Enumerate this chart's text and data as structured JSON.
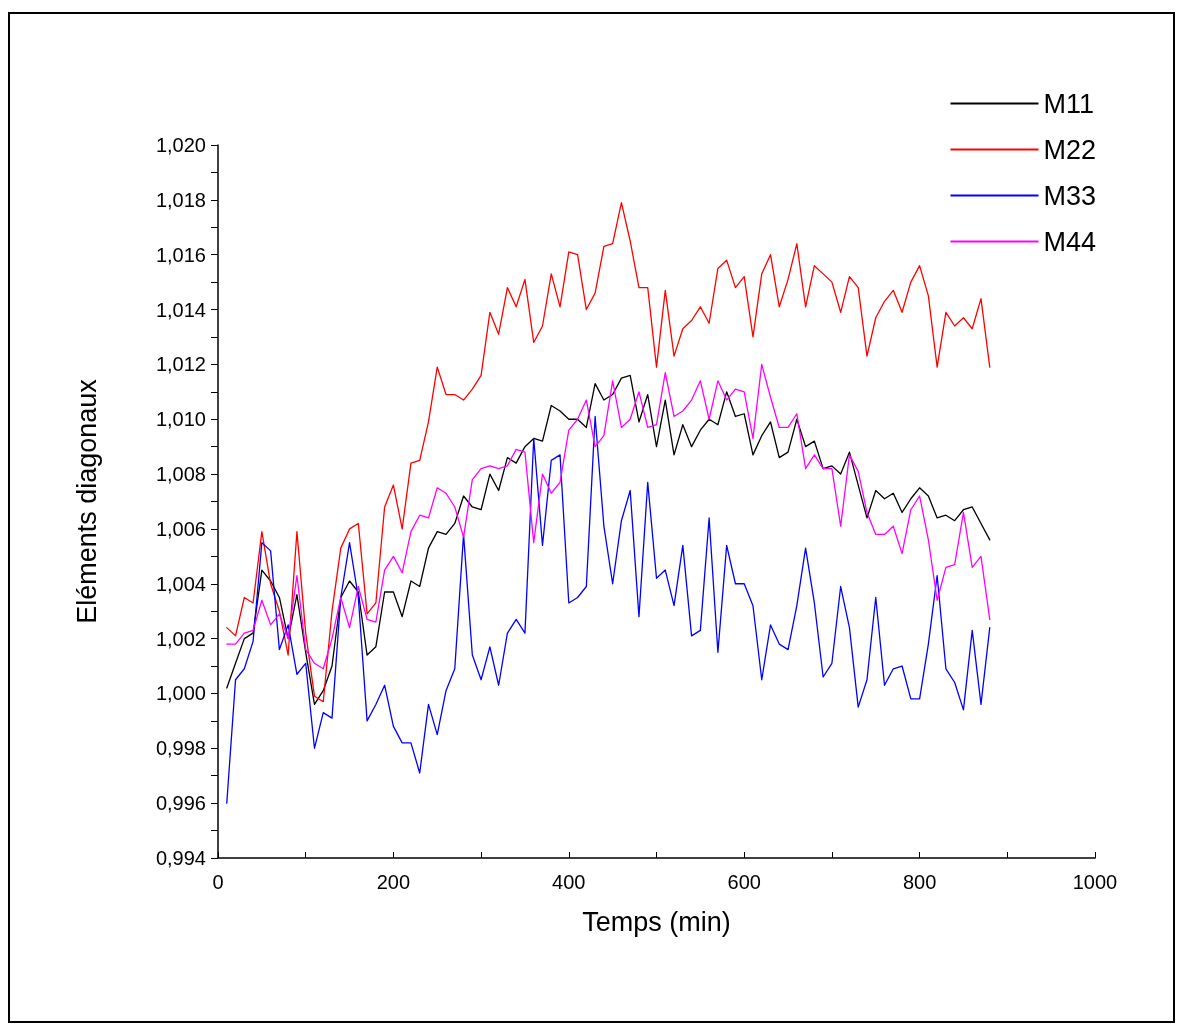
{
  "chart_data": {
    "type": "line",
    "xlabel": "Temps (min)",
    "ylabel": "Eléments diagonaux",
    "x": [
      10,
      20,
      30,
      40,
      50,
      60,
      70,
      80,
      90,
      100,
      110,
      120,
      130,
      140,
      150,
      160,
      170,
      180,
      190,
      200,
      210,
      220,
      230,
      240,
      250,
      260,
      270,
      280,
      290,
      300,
      310,
      320,
      330,
      340,
      350,
      360,
      370,
      380,
      390,
      400,
      410,
      420,
      430,
      440,
      450,
      460,
      470,
      480,
      490,
      500,
      510,
      520,
      530,
      540,
      550,
      560,
      570,
      580,
      590,
      600,
      610,
      620,
      630,
      640,
      650,
      660,
      670,
      680,
      690,
      700,
      710,
      720,
      730,
      740,
      750,
      760,
      770,
      780,
      790,
      800,
      810,
      820,
      830,
      840,
      850,
      860,
      870,
      880
    ],
    "series": [
      {
        "name": "M11",
        "color": "#000000",
        "values": [
          1.0002,
          1.0011,
          1.002,
          1.0022,
          1.0045,
          1.0041,
          1.0035,
          1.002,
          1.0036,
          1.0015,
          0.9996,
          1.0001,
          1.001,
          1.0035,
          1.0041,
          1.0037,
          1.0014,
          1.0017,
          1.0037,
          1.0037,
          1.0028,
          1.0041,
          1.0039,
          1.0053,
          1.0059,
          1.0058,
          1.0062,
          1.0072,
          1.0068,
          1.0067,
          1.008,
          1.0074,
          1.0086,
          1.0084,
          1.009,
          1.0093,
          1.0092,
          1.0105,
          1.0103,
          1.01,
          1.01,
          1.0097,
          1.0113,
          1.0107,
          1.0109,
          1.0115,
          1.0116,
          1.0099,
          1.0109,
          1.009,
          1.0107,
          1.0087,
          1.0098,
          1.009,
          1.0096,
          1.01,
          1.0098,
          1.011,
          1.0101,
          1.0102,
          1.0087,
          1.0094,
          1.0099,
          1.0086,
          1.0088,
          1.01,
          1.009,
          1.0092,
          1.0082,
          1.0083,
          1.008,
          1.0088,
          1.0076,
          1.0064,
          1.0074,
          1.0071,
          1.0073,
          1.0066,
          1.0071,
          1.0075,
          1.0072,
          1.0064,
          1.0065,
          1.0063,
          1.0067,
          1.0068,
          1.0062,
          1.0056
        ]
      },
      {
        "name": "M22",
        "color": "#ff0000",
        "values": [
          1.0024,
          1.0021,
          1.0035,
          1.0033,
          1.0059,
          1.004,
          1.003,
          1.0014,
          1.0059,
          1.0022,
          0.9999,
          0.9997,
          1.003,
          1.0053,
          1.006,
          1.0062,
          1.0029,
          1.0033,
          1.0068,
          1.0076,
          1.006,
          1.0084,
          1.0085,
          1.0099,
          1.0119,
          1.0109,
          1.0109,
          1.0107,
          1.0111,
          1.0116,
          1.0139,
          1.0131,
          1.0148,
          1.0141,
          1.0151,
          1.0128,
          1.0134,
          1.0153,
          1.0141,
          1.0161,
          1.016,
          1.014,
          1.0146,
          1.0163,
          1.0164,
          1.0179,
          1.0165,
          1.0148,
          1.0148,
          1.0119,
          1.0147,
          1.0123,
          1.0133,
          1.0136,
          1.0141,
          1.0135,
          1.0155,
          1.0158,
          1.0148,
          1.0152,
          1.013,
          1.0153,
          1.016,
          1.0141,
          1.0151,
          1.0164,
          1.0141,
          1.0156,
          1.0153,
          1.015,
          1.0139,
          1.0152,
          1.0148,
          1.0123,
          1.0137,
          1.0143,
          1.0147,
          1.0139,
          1.015,
          1.0156,
          1.0145,
          1.0119,
          1.0139,
          1.0134,
          1.0137,
          1.0133,
          1.0144,
          1.0119
        ]
      },
      {
        "name": "M33",
        "color": "#0000ff",
        "values": [
          0.996,
          1.0005,
          1.0009,
          1.0019,
          1.0055,
          1.0052,
          1.0016,
          1.0025,
          1.0007,
          1.0011,
          0.998,
          0.9993,
          0.9991,
          1.0035,
          1.0055,
          1.0035,
          0.999,
          0.9996,
          1.0003,
          0.9988,
          0.9982,
          0.9982,
          0.9971,
          0.9996,
          0.9985,
          1.0001,
          1.0009,
          1.0058,
          1.0014,
          1.0005,
          1.0017,
          1.0003,
          1.0022,
          1.0027,
          1.0022,
          1.0093,
          1.0054,
          1.0085,
          1.0087,
          1.0033,
          1.0035,
          1.0039,
          1.0101,
          1.0061,
          1.004,
          1.0063,
          1.0074,
          1.0028,
          1.0077,
          1.0042,
          1.0045,
          1.0032,
          1.0054,
          1.0021,
          1.0023,
          1.0064,
          1.0015,
          1.0054,
          1.004,
          1.004,
          1.0032,
          1.0005,
          1.0025,
          1.0018,
          1.0016,
          1.0032,
          1.0053,
          1.0033,
          1.0006,
          1.0011,
          1.0039,
          1.0024,
          0.9995,
          1.0005,
          1.0035,
          1.0003,
          1.0009,
          1.001,
          0.9998,
          0.9998,
          1.0018,
          1.0043,
          1.0009,
          1.0004,
          0.9994,
          1.0023,
          0.9996,
          1.0024
        ]
      },
      {
        "name": "M44",
        "color": "#ff00ff",
        "values": [
          1.0018,
          1.0018,
          1.0022,
          1.0023,
          1.0034,
          1.0025,
          1.0029,
          1.002,
          1.0043,
          1.0016,
          1.0011,
          1.0009,
          1.002,
          1.0035,
          1.0024,
          1.0039,
          1.0027,
          1.0026,
          1.0045,
          1.005,
          1.0044,
          1.0059,
          1.0065,
          1.0064,
          1.0075,
          1.0073,
          1.0068,
          1.0057,
          1.0078,
          1.0082,
          1.0083,
          1.0082,
          1.0083,
          1.0089,
          1.0088,
          1.0055,
          1.008,
          1.0073,
          1.0077,
          1.0096,
          1.01,
          1.0107,
          1.009,
          1.0094,
          1.0114,
          1.0097,
          1.01,
          1.011,
          1.0097,
          1.0098,
          1.0117,
          1.0101,
          1.0103,
          1.0107,
          1.0114,
          1.01,
          1.0114,
          1.0107,
          1.0111,
          1.011,
          1.0093,
          1.012,
          1.0108,
          1.0097,
          1.0097,
          1.0102,
          1.0082,
          1.0087,
          1.0082,
          1.0082,
          1.0061,
          1.0087,
          1.0081,
          1.0066,
          1.0058,
          1.0058,
          1.0061,
          1.0051,
          1.0067,
          1.0072,
          1.0056,
          1.0034,
          1.0046,
          1.0047,
          1.0066,
          1.0046,
          1.005,
          1.0027
        ]
      }
    ],
    "xlim": [
      0,
      1000
    ],
    "xticks": [
      0,
      {
        "value": 100,
        "label": null
      },
      200,
      {
        "value": 300,
        "label": null
      },
      400,
      {
        "value": 500,
        "label": null
      },
      600,
      {
        "value": 700,
        "label": null
      },
      800,
      {
        "value": 900,
        "label": null
      },
      1000
    ],
    "ylim": [
      0.994,
      1.02
    ],
    "yticks": [
      {
        "value": 0.994,
        "label": "0,994"
      },
      {
        "value": 0.995,
        "label": null
      },
      {
        "value": 0.996,
        "label": "0,996"
      },
      {
        "value": 0.997,
        "label": null
      },
      {
        "value": 0.998,
        "label": "0,998"
      },
      {
        "value": 0.999,
        "label": null
      },
      {
        "value": 1.0,
        "label": "1,000"
      },
      {
        "value": 1.001,
        "label": null
      },
      {
        "value": 1.002,
        "label": "1,002"
      },
      {
        "value": 1.003,
        "label": null
      },
      {
        "value": 1.004,
        "label": "1,004"
      },
      {
        "value": 1.005,
        "label": null
      },
      {
        "value": 1.006,
        "label": "1,006"
      },
      {
        "value": 1.007,
        "label": null
      },
      {
        "value": 1.008,
        "label": "1,008"
      },
      {
        "value": 1.009,
        "label": null
      },
      {
        "value": 1.01,
        "label": "1,010"
      },
      {
        "value": 1.011,
        "label": null
      },
      {
        "value": 1.012,
        "label": "1,012"
      },
      {
        "value": 1.013,
        "label": null
      },
      {
        "value": 1.014,
        "label": "1,014"
      },
      {
        "value": 1.015,
        "label": null
      },
      {
        "value": 1.016,
        "label": "1,016"
      },
      {
        "value": 1.017,
        "label": null
      },
      {
        "value": 1.018,
        "label": "1,018"
      },
      {
        "value": 1.019,
        "label": null
      },
      {
        "value": 1.02,
        "label": "1,020"
      }
    ],
    "grid": false,
    "legend": "top right",
    "marker": "none",
    "line_style": "solid"
  }
}
